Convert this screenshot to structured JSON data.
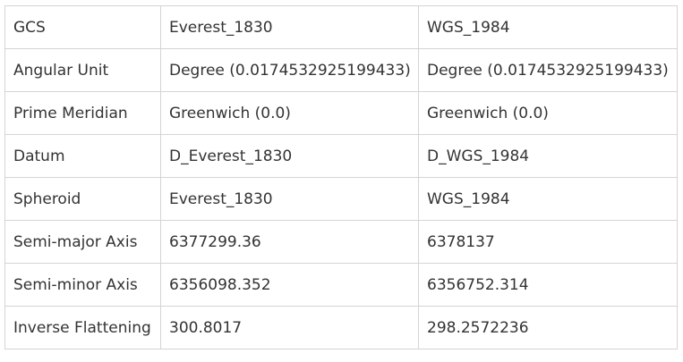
{
  "table": {
    "rows": [
      {
        "label": "GCS",
        "col1": "Everest_1830",
        "col2": "WGS_1984"
      },
      {
        "label": "Angular Unit",
        "col1": "Degree (0.0174532925199433)",
        "col2": "Degree (0.0174532925199433)"
      },
      {
        "label": "Prime Meridian",
        "col1": "Greenwich (0.0)",
        "col2": "Greenwich (0.0)"
      },
      {
        "label": "Datum",
        "col1": "D_Everest_1830",
        "col2": "D_WGS_1984"
      },
      {
        "label": "Spheroid",
        "col1": "Everest_1830",
        "col2": "WGS_1984"
      },
      {
        "label": "Semi-major Axis",
        "col1": "6377299.36",
        "col2": "6378137"
      },
      {
        "label": "Semi-minor Axis",
        "col1": "6356098.352",
        "col2": "6356752.314"
      },
      {
        "label": "Inverse Flattening",
        "col1": "300.8017",
        "col2": "298.2572236"
      }
    ]
  }
}
